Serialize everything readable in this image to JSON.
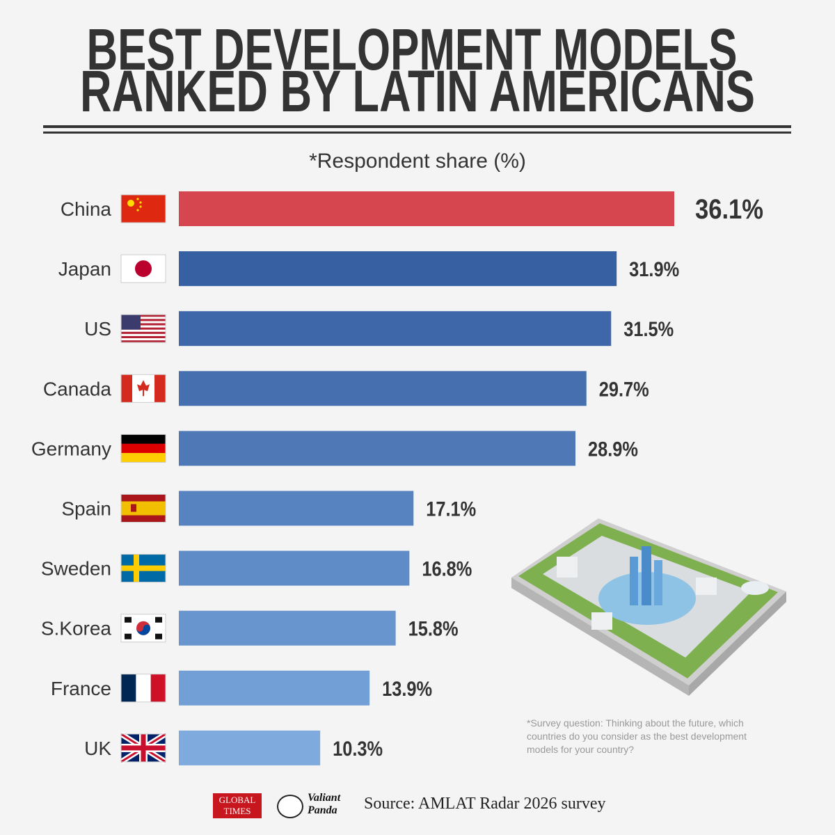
{
  "chart_data": {
    "type": "bar",
    "orientation": "horizontal",
    "title": [
      "BEST DEVELOPMENT MODELS",
      "RANKED BY LATIN AMERICANS"
    ],
    "subtitle": "*Respondent share (%)",
    "categories": [
      "China",
      "Japan",
      "US",
      "Canada",
      "Germany",
      "Spain",
      "Sweden",
      "S.Korea",
      "France",
      "UK"
    ],
    "values": [
      36.1,
      31.9,
      31.5,
      29.7,
      28.9,
      17.1,
      16.8,
      15.8,
      13.9,
      10.3
    ],
    "value_labels": [
      "36.1%",
      "31.9%",
      "31.5%",
      "29.7%",
      "28.9%",
      "17.1%",
      "16.8%",
      "15.8%",
      "13.9%",
      "10.3%"
    ],
    "colors": [
      "#d6464f",
      "#3660a2",
      "#3d67a8",
      "#456faf",
      "#4e78b6",
      "#5783c0",
      "#5f8bc6",
      "#6895ce",
      "#729fd6",
      "#7eaade"
    ],
    "note": "*Survey question: Thinking about the future, which countries do you consider as the best development models for your country?",
    "source": "Source: AMLAT Radar 2026 survey",
    "logos": [
      "GLOBAL TIMES",
      "Valiant Panda"
    ]
  }
}
